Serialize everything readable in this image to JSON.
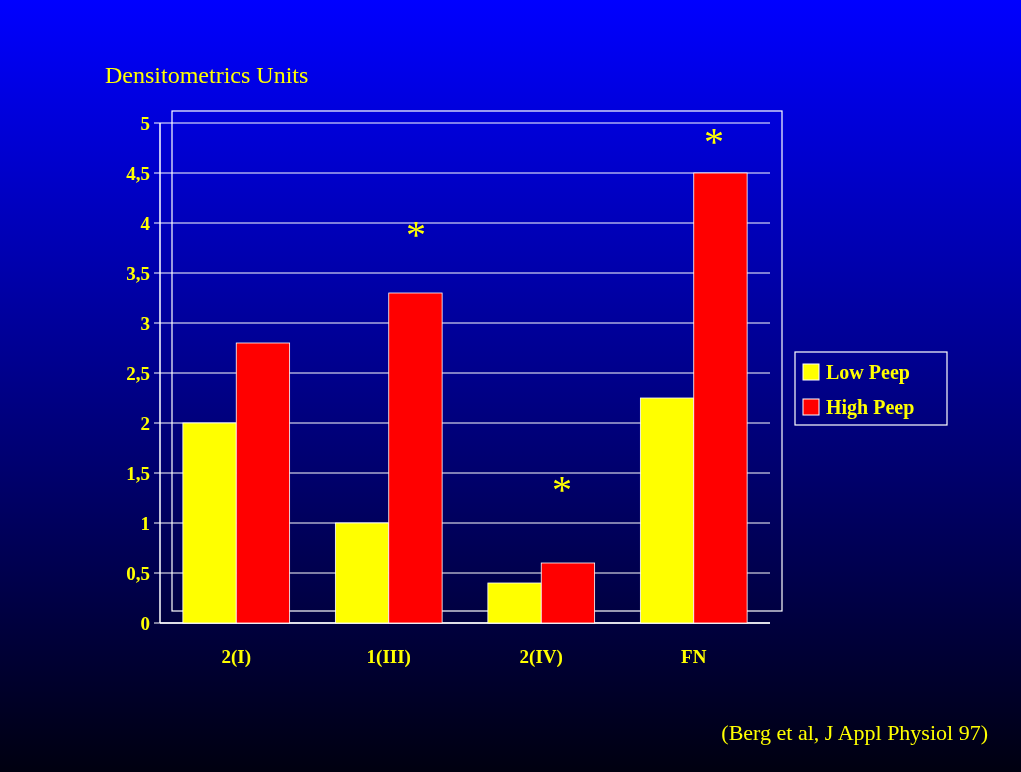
{
  "chart_data": {
    "type": "bar",
    "ylabel": "Densitometrics Units",
    "categories": [
      "2(I)",
      "1(III)",
      "2(IV)",
      "FN"
    ],
    "series": [
      {
        "name": "Low Peep",
        "color": "#ffff00",
        "values": [
          2,
          1,
          0.4,
          2.25
        ]
      },
      {
        "name": "High Peep",
        "color": "#ff0000",
        "values": [
          2.8,
          3.3,
          0.6,
          4.5
        ]
      }
    ],
    "ylim": [
      0,
      5
    ],
    "yticks": [
      0,
      {
        "value": 0.5,
        "label": "0,5"
      },
      1,
      {
        "value": 1.5,
        "label": "1,5"
      },
      2,
      {
        "value": 2.5,
        "label": "2,5"
      },
      3,
      {
        "value": 3.5,
        "label": "3,5"
      },
      4,
      {
        "value": 4.5,
        "label": "4,5"
      },
      5
    ],
    "grid": "y",
    "legend": "right",
    "annotations": [
      "*",
      "*",
      "*",
      "(Berg et al, J Appl Physiol 97)"
    ]
  }
}
